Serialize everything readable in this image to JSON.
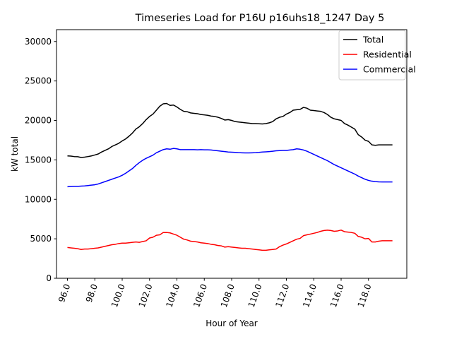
{
  "chart_data": {
    "type": "line",
    "title": "Timeseries Load for P16U p16uhs18_1247  Day 5",
    "xlabel": "Hour of Year",
    "ylabel": "kW total",
    "xlim": [
      95.2,
      120.8
    ],
    "ylim": [
      0,
      31500
    ],
    "xticks": [
      96.0,
      98.0,
      100.0,
      102.0,
      104.0,
      106.0,
      108.0,
      110.0,
      112.0,
      114.0,
      116.0,
      118.0
    ],
    "xtick_labels": [
      "96.0",
      "98.0",
      "100.0",
      "102.0",
      "104.0",
      "106.0",
      "108.0",
      "110.0",
      "112.0",
      "114.0",
      "116.0",
      "118.0"
    ],
    "yticks": [
      0,
      5000,
      10000,
      15000,
      20000,
      25000,
      30000
    ],
    "ytick_labels": [
      "0",
      "5000",
      "10000",
      "15000",
      "20000",
      "25000",
      "30000"
    ],
    "legend_position": "top-right",
    "x": {
      "start": 96.0,
      "step": 0.25,
      "count": 96
    },
    "series": [
      {
        "name": "Total",
        "color": "#000000",
        "values": [
          15500,
          15480,
          15420,
          15400,
          15300,
          15350,
          15420,
          15500,
          15620,
          15750,
          16000,
          16200,
          16400,
          16700,
          16900,
          17100,
          17400,
          17650,
          18000,
          18400,
          18900,
          19200,
          19600,
          20100,
          20500,
          20800,
          21300,
          21800,
          22100,
          22150,
          21900,
          21950,
          21700,
          21400,
          21150,
          21100,
          20950,
          20900,
          20850,
          20750,
          20700,
          20650,
          20550,
          20500,
          20400,
          20250,
          20050,
          20100,
          20000,
          19850,
          19800,
          19750,
          19700,
          19650,
          19600,
          19600,
          19580,
          19550,
          19600,
          19700,
          19850,
          20200,
          20400,
          20500,
          20800,
          21000,
          21300,
          21350,
          21400,
          21650,
          21550,
          21300,
          21250,
          21200,
          21150,
          21000,
          20750,
          20400,
          20200,
          20100,
          20000,
          19600,
          19400,
          19150,
          18900,
          18200,
          17900,
          17500,
          17350,
          16900,
          16850,
          16900,
          16900,
          16900,
          16900,
          16900
        ]
      },
      {
        "name": "Residential",
        "color": "#ff0000",
        "values": [
          3900,
          3850,
          3800,
          3750,
          3650,
          3700,
          3700,
          3750,
          3800,
          3850,
          3950,
          4050,
          4150,
          4250,
          4300,
          4400,
          4450,
          4450,
          4500,
          4550,
          4600,
          4550,
          4650,
          4750,
          5100,
          5200,
          5450,
          5500,
          5800,
          5800,
          5750,
          5600,
          5450,
          5200,
          4950,
          4850,
          4700,
          4650,
          4600,
          4500,
          4450,
          4400,
          4300,
          4250,
          4150,
          4100,
          3950,
          4000,
          3950,
          3900,
          3850,
          3800,
          3800,
          3750,
          3700,
          3650,
          3600,
          3550,
          3550,
          3600,
          3650,
          3700,
          4000,
          4200,
          4350,
          4550,
          4750,
          4950,
          5050,
          5400,
          5500,
          5600,
          5700,
          5800,
          5950,
          6050,
          6100,
          6050,
          5950,
          6000,
          6100,
          5900,
          5850,
          5800,
          5700,
          5300,
          5200,
          5000,
          5050,
          4600,
          4600,
          4700,
          4750,
          4750,
          4750,
          4750
        ]
      },
      {
        "name": "Commercial",
        "color": "#0000ff",
        "values": [
          11600,
          11620,
          11640,
          11650,
          11680,
          11700,
          11750,
          11800,
          11850,
          11950,
          12100,
          12250,
          12400,
          12550,
          12700,
          12850,
          13050,
          13300,
          13600,
          13900,
          14300,
          14650,
          14950,
          15200,
          15400,
          15600,
          15900,
          16100,
          16300,
          16400,
          16350,
          16450,
          16400,
          16300,
          16300,
          16300,
          16300,
          16300,
          16280,
          16300,
          16280,
          16280,
          16250,
          16200,
          16150,
          16100,
          16050,
          16000,
          15970,
          15950,
          15920,
          15900,
          15880,
          15880,
          15900,
          15920,
          15950,
          16000,
          16020,
          16050,
          16100,
          16150,
          16180,
          16200,
          16200,
          16250,
          16300,
          16400,
          16350,
          16250,
          16100,
          15900,
          15700,
          15500,
          15300,
          15100,
          14900,
          14650,
          14400,
          14200,
          14000,
          13800,
          13600,
          13400,
          13200,
          12950,
          12750,
          12550,
          12400,
          12300,
          12250,
          12220,
          12200,
          12200,
          12200,
          12200
        ]
      }
    ]
  }
}
